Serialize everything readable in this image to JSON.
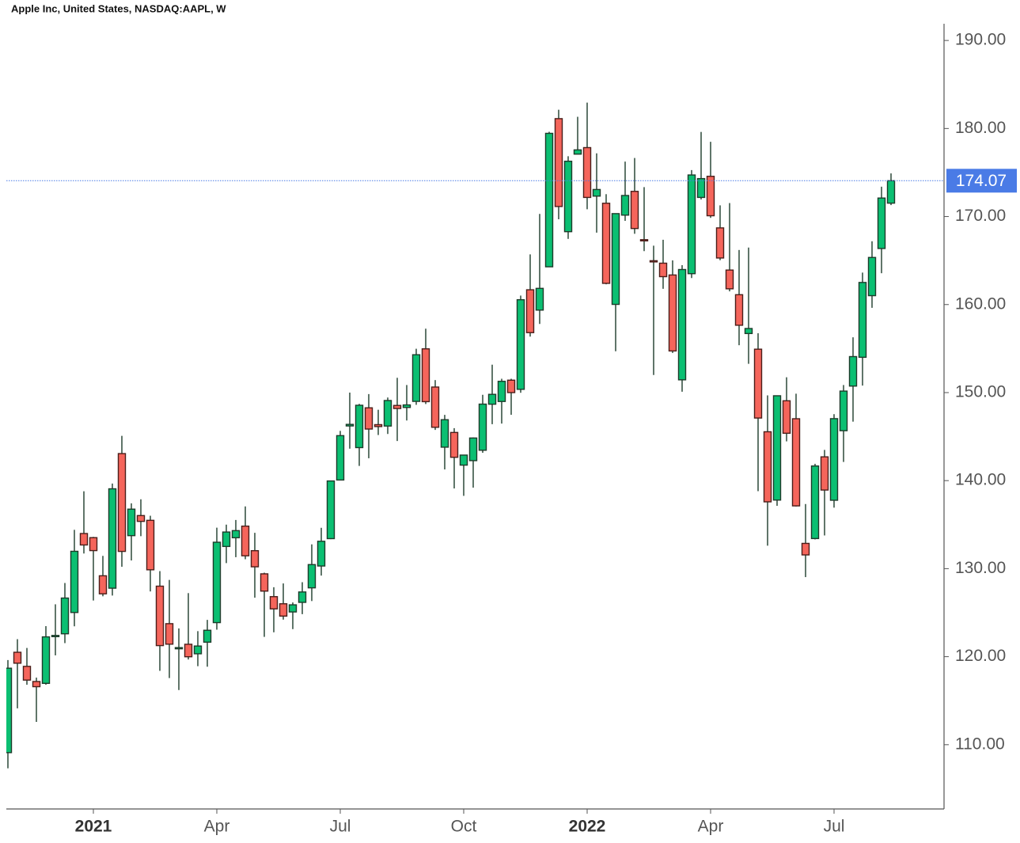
{
  "chart_data": {
    "type": "candlestick",
    "title": "Apple Inc, United States, NASDAQ:AAPL, W",
    "categories": [
      null,
      null,
      null,
      null,
      null,
      null,
      null,
      null,
      null,
      "2021",
      null,
      null,
      null,
      null,
      null,
      null,
      null,
      null,
      null,
      null,
      null,
      null,
      "Apr",
      null,
      null,
      null,
      null,
      null,
      null,
      null,
      null,
      null,
      null,
      null,
      null,
      "Jul",
      null,
      null,
      null,
      null,
      null,
      null,
      null,
      null,
      null,
      null,
      null,
      null,
      "Oct",
      null,
      null,
      null,
      null,
      null,
      null,
      null,
      null,
      null,
      null,
      null,
      null,
      "2022",
      null,
      null,
      null,
      null,
      null,
      null,
      null,
      null,
      null,
      null,
      null,
      null,
      "Apr",
      null,
      null,
      null,
      null,
      null,
      null,
      null,
      null,
      null,
      null,
      null,
      null,
      "Jul",
      null,
      null,
      null,
      null,
      null,
      null
    ],
    "open": [
      109.1,
      120.5,
      118.9,
      117.18,
      116.97,
      122.31,
      122.6,
      125.02,
      133.99,
      133.52,
      129.19,
      127.78,
      143.07,
      133.75,
      136.03,
      135.49,
      128.01,
      123.75,
      120.93,
      121.41,
      120.33,
      121.65,
      123.87,
      132.52,
      133.51,
      134.83,
      132.04,
      129.41,
      126.82,
      126.01,
      125.08,
      126.17,
      127.82,
      130.3,
      133.41,
      140.07,
      146.21,
      143.75,
      148.27,
      146.36,
      146.2,
      148.54,
      148.31,
      149.0,
      154.97,
      150.63,
      143.8,
      145.47,
      141.76,
      142.27,
      143.45,
      148.68,
      148.99,
      151.41,
      150.37,
      161.68,
      159.37,
      164.29,
      181.12,
      168.28,
      177.09,
      177.83,
      172.32,
      171.51,
      160.02,
      170.16,
      172.86,
      167.37,
      164.98,
      164.7,
      163.36,
      151.45,
      163.51,
      172.17,
      174.57,
      168.71,
      163.92,
      161.12,
      156.71,
      154.93,
      145.55,
      137.79,
      149.07,
      147.03,
      132.87,
      133.42,
      142.7,
      137.77,
      145.67,
      150.74,
      154.01,
      161.01,
      166.37,
      171.52
    ],
    "high": [
      119.62,
      121.99,
      120.99,
      117.62,
      123.47,
      125.95,
      128.37,
      134.41,
      138.79,
      133.61,
      131.45,
      139.67,
      145.09,
      137.42,
      137.88,
      136.01,
      129.72,
      128.72,
      123.21,
      127.22,
      122.9,
      124.18,
      134.66,
      135.0,
      135.53,
      137.07,
      134.07,
      129.54,
      127.89,
      128.32,
      126.16,
      128.46,
      132.76,
      134.64,
      140.0,
      145.65,
      150.0,
      148.72,
      149.83,
      148.05,
      149.44,
      151.68,
      150.86,
      154.98,
      157.26,
      151.42,
      147.47,
      145.96,
      142.92,
      144.9,
      149.75,
      153.17,
      151.57,
      151.57,
      161.02,
      165.7,
      170.3,
      179.63,
      182.13,
      176.85,
      181.33,
      182.94,
      177.18,
      172.54,
      170.35,
      176.24,
      176.65,
      173.34,
      166.69,
      167.36,
      165.02,
      164.48,
      175.28,
      179.61,
      178.49,
      171.27,
      171.53,
      166.2,
      166.48,
      156.74,
      149.68,
      149.68,
      151.74,
      149.87,
      137.34,
      141.91,
      143.49,
      147.55,
      150.86,
      156.28,
      163.63,
      167.19,
      173.39,
      174.9
    ],
    "low": [
      107.32,
      114.13,
      116.81,
      112.59,
      116.81,
      120.15,
      121.54,
      123.45,
      131.72,
      126.38,
      126.86,
      126.94,
      130.21,
      130.93,
      133.69,
      127.41,
      118.39,
      117.57,
      116.21,
      119.68,
      118.92,
      118.86,
      123.07,
      130.63,
      131.3,
      131.07,
      126.7,
      122.25,
      122.77,
      124.21,
      123.13,
      124.83,
      126.32,
      129.21,
      133.35,
      140.07,
      143.63,
      141.67,
      142.54,
      145.18,
      145.3,
      144.5,
      146.83,
      148.61,
      148.7,
      145.76,
      141.27,
      139.11,
      138.27,
      139.2,
      143.16,
      146.41,
      146.48,
      147.48,
      149.98,
      156.36,
      157.8,
      164.28,
      169.69,
      167.46,
      177.07,
      170.82,
      168.17,
      162.3,
      154.7,
      169.51,
      168.04,
      166.07,
      152.0,
      161.79,
      154.5,
      150.1,
      163.01,
      171.94,
      169.85,
      165.04,
      161.5,
      155.38,
      153.27,
      138.8,
      132.61,
      137.14,
      144.46,
      137.06,
      129.04,
      133.32,
      133.77,
      136.93,
      142.12,
      146.7,
      150.8,
      159.63,
      163.56,
      171.3
    ],
    "close": [
      118.69,
      119.26,
      117.34,
      116.59,
      122.25,
      122.41,
      126.66,
      131.97,
      132.69,
      132.05,
      127.14,
      139.07,
      131.96,
      136.76,
      135.37,
      129.87,
      121.26,
      121.42,
      121.03,
      119.99,
      121.21,
      123.0,
      133.0,
      134.16,
      134.32,
      131.46,
      130.21,
      127.45,
      125.43,
      124.61,
      125.89,
      127.35,
      130.46,
      133.11,
      139.96,
      145.11,
      146.39,
      148.56,
      145.86,
      146.14,
      149.1,
      148.19,
      148.6,
      154.3,
      148.97,
      146.06,
      146.92,
      142.65,
      142.9,
      144.84,
      148.69,
      149.8,
      151.28,
      150.0,
      160.55,
      156.81,
      161.84,
      179.45,
      171.14,
      176.28,
      177.57,
      172.17,
      173.07,
      162.41,
      170.33,
      172.39,
      168.64,
      167.3,
      164.85,
      163.17,
      154.73,
      163.98,
      174.72,
      174.31,
      170.09,
      165.29,
      161.79,
      157.65,
      157.28,
      147.11,
      137.59,
      149.64,
      145.38,
      137.13,
      131.56,
      141.66,
      138.93,
      147.04,
      150.17,
      154.09,
      162.51,
      165.35,
      172.1,
      174.07
    ],
    "up_color": "#0bbf72",
    "down_color": "#f5655b",
    "last_price_color": "#4a7be6",
    "ylim": [
      102.7,
      191.9
    ],
    "yticks": [
      {
        "value": 110,
        "label": "110.00"
      },
      {
        "value": 120,
        "label": "120.00"
      },
      {
        "value": 130,
        "label": "130.00"
      },
      {
        "value": 140,
        "label": "140.00"
      },
      {
        "value": 150,
        "label": "150.00"
      },
      {
        "value": 160,
        "label": "160.00"
      },
      {
        "value": 170,
        "label": "170.00"
      },
      {
        "value": 180,
        "label": "180.00"
      },
      {
        "value": 190,
        "label": "190.00"
      }
    ]
  }
}
